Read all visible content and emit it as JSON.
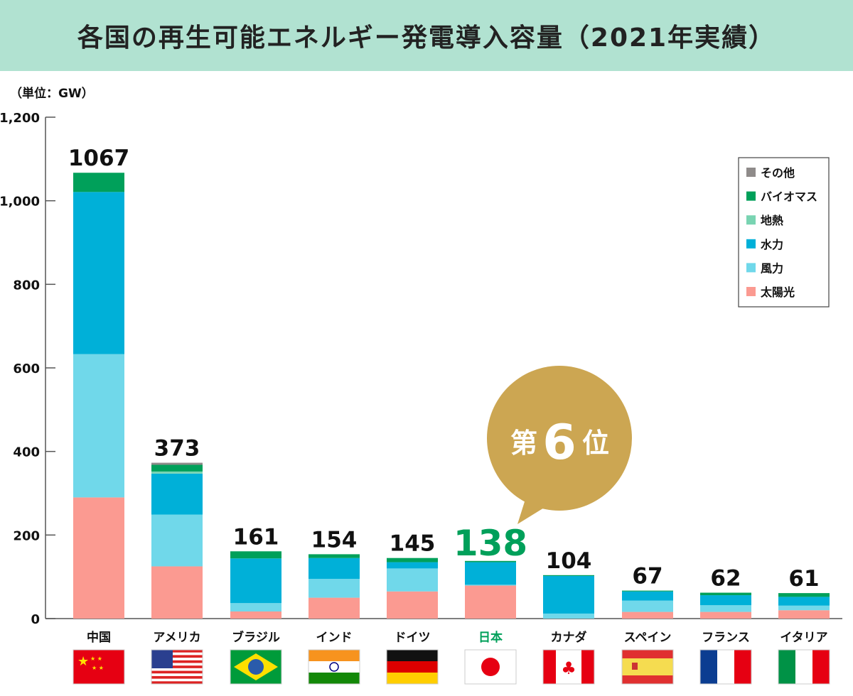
{
  "title": "各国の再生可能エネルギー発電導入容量（2021年実績）",
  "unit_label": "（単位：GW）",
  "badge": {
    "prefix": "第",
    "number": "6",
    "suffix": "位",
    "color": "#cca652"
  },
  "colors": {
    "その他": "#8f8b8a",
    "バイオマス": "#00a05a",
    "地熱": "#79d4b2",
    "水力": "#00b0d8",
    "風力": "#70d8ea",
    "太陽光": "#fb9a91",
    "highlight": "#00a05a"
  },
  "chart_data": {
    "type": "bar",
    "stacked": true,
    "title": "各国の再生可能エネルギー発電導入容量（2021年実績）",
    "ylabel": "（単位：GW）",
    "ylim": [
      0,
      1200
    ],
    "yticks": [
      "0",
      "200",
      "400",
      "600",
      "800",
      "1,000",
      "1,200"
    ],
    "ytick_values": [
      0,
      200,
      400,
      600,
      800,
      1000,
      1200
    ],
    "grid": false,
    "legend_position": "top-right",
    "categories": [
      "中国",
      "アメリカ",
      "ブラジル",
      "インド",
      "ドイツ",
      "日本",
      "カナダ",
      "スペイン",
      "フランス",
      "イタリア"
    ],
    "highlight_category": "日本",
    "totals": [
      1067,
      373,
      161,
      154,
      145,
      138,
      104,
      67,
      62,
      61
    ],
    "total_labels": [
      "1067",
      "373",
      "161",
      "154",
      "145",
      "138",
      "104",
      "67",
      "62",
      "61"
    ],
    "series": [
      {
        "name": "太陽光",
        "values": [
          290,
          125,
          17,
          50,
          65,
          79,
          0,
          16,
          16,
          20
        ]
      },
      {
        "name": "風力",
        "values": [
          343,
          124,
          20,
          45,
          55,
          2,
          12,
          27,
          16,
          11
        ]
      },
      {
        "name": "水力",
        "values": [
          388,
          98,
          107,
          50,
          15,
          54,
          90,
          22,
          24,
          21
        ]
      },
      {
        "name": "地熱",
        "values": [
          0,
          5,
          0,
          0,
          0,
          0,
          0,
          0,
          0,
          0
        ]
      },
      {
        "name": "バイオマス",
        "values": [
          46,
          16,
          17,
          9,
          10,
          3,
          2,
          2,
          6,
          9
        ]
      },
      {
        "name": "その他",
        "values": [
          0,
          5,
          0,
          0,
          0,
          0,
          0,
          0,
          0,
          0
        ]
      }
    ],
    "legend": [
      "その他",
      "バイオマス",
      "地熱",
      "水力",
      "風力",
      "太陽光"
    ],
    "flags": [
      "china",
      "usa",
      "brazil",
      "india",
      "germany",
      "japan",
      "canada",
      "spain",
      "france",
      "italy"
    ]
  }
}
